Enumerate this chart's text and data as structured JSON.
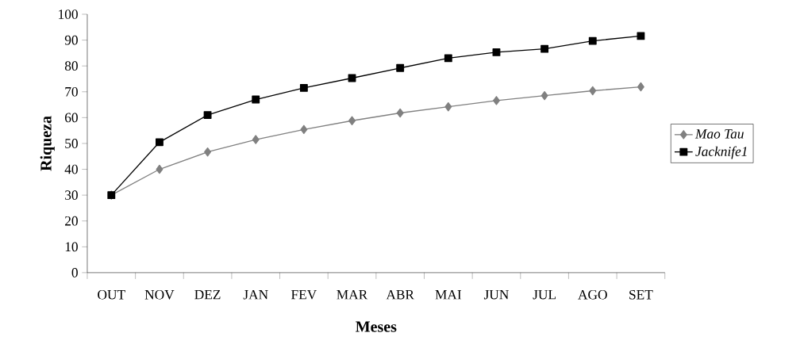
{
  "chart_data": {
    "type": "line",
    "xlabel": "Meses",
    "ylabel": "Riqueza",
    "categories": [
      "OUT",
      "NOV",
      "DEZ",
      "JAN",
      "FEV",
      "MAR",
      "ABR",
      "MAI",
      "JUN",
      "JUL",
      "AGO",
      "SET"
    ],
    "series": [
      {
        "name": "Mao Tau",
        "color": "#808080",
        "marker": "diamond",
        "values": [
          30,
          40,
          46.7,
          51.5,
          55.4,
          58.8,
          61.8,
          64.2,
          66.6,
          68.5,
          70.4,
          71.9
        ]
      },
      {
        "name": "Jacknife1",
        "color": "#000000",
        "marker": "square",
        "values": [
          30,
          50.5,
          61,
          67,
          71.5,
          75.3,
          79.2,
          83,
          85.3,
          86.6,
          89.7,
          91.6
        ]
      }
    ],
    "ylim": [
      0,
      100
    ],
    "yticks": [
      0,
      10,
      20,
      30,
      40,
      50,
      60,
      70,
      80,
      90,
      100
    ],
    "grid": false,
    "legend": "right",
    "line_style": "solid"
  }
}
